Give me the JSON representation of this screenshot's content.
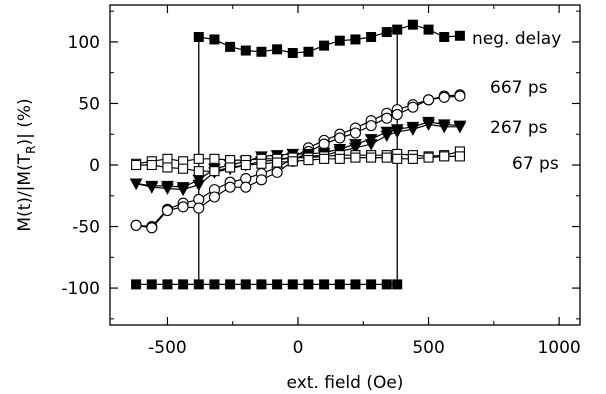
{
  "chart_data": {
    "type": "line",
    "xlabel": "ext. field (Oe)",
    "ylabel_main": "M(t)/|M(T",
    "ylabel_sub": "R",
    "ylabel_tail": ")| (%)",
    "xlim": [
      -720,
      1080
    ],
    "ylim": [
      -130,
      130
    ],
    "xticks": [
      -500,
      0,
      500,
      1000
    ],
    "yticks": [
      -100,
      -50,
      0,
      50,
      100
    ],
    "grid": false,
    "series": [
      {
        "name": "neg. delay",
        "marker": "filled-square",
        "branches": [
          {
            "x": [
              -620,
              -560,
              -500,
              -440,
              -380,
              -320,
              -260,
              -200,
              -140,
              -80,
              -20,
              40,
              100,
              160,
              220,
              280,
              340,
              380
            ],
            "y": [
              -97,
              -97,
              -97,
              -97,
              -97,
              -97,
              -97,
              -97,
              -97,
              -97,
              -97,
              -97,
              -97,
              -97,
              -97,
              -97,
              -97,
              -97
            ]
          },
          {
            "x": [
              -380,
              -320,
              -260,
              -200,
              -140,
              -80,
              -20,
              40,
              100,
              160,
              220,
              280,
              340,
              380,
              440,
              500,
              560,
              620
            ],
            "y": [
              104,
              102,
              96,
              93,
              92,
              94,
              91,
              92,
              97,
              101,
              102,
              104,
              108,
              110,
              114,
              110,
              104,
              105
            ]
          }
        ],
        "switch_x": [
          -380,
          380
        ]
      },
      {
        "name": "667 ps",
        "marker": "open-circle",
        "branches": [
          {
            "x": [
              -620,
              -560,
              -500,
              -440,
              -380,
              -320,
              -260,
              -200,
              -140,
              -80,
              -20,
              40,
              100,
              160,
              220,
              280,
              340,
              380,
              440,
              500,
              560,
              620
            ],
            "y": [
              -49,
              -50,
              -36,
              -31,
              -28,
              -20,
              -14,
              -11,
              -7,
              -2,
              5,
              14,
              20,
              25,
              30,
              36,
              42,
              45,
              49,
              53,
              56,
              57
            ]
          },
          {
            "x": [
              -620,
              -560,
              -500,
              -440,
              -380,
              -320,
              -260,
              -200,
              -140,
              -80,
              -20,
              40,
              100,
              160,
              220,
              280,
              340,
              380,
              440,
              500,
              560,
              620
            ],
            "y": [
              -49,
              -51,
              -37,
              -34,
              -35,
              -26,
              -18,
              -18,
              -12,
              -6,
              3,
              11,
              17,
              22,
              26,
              32,
              38,
              41,
              47,
              53,
              55,
              56
            ]
          }
        ]
      },
      {
        "name": "267 ps",
        "marker": "filled-triangle-down",
        "branches": [
          {
            "x": [
              -620,
              -560,
              -500,
              -440,
              -380,
              -320,
              -260,
              -200,
              -140,
              -80,
              -20,
              40,
              100,
              160,
              220,
              280,
              340,
              380,
              440,
              500,
              560,
              620
            ],
            "y": [
              -15,
              -17,
              -17,
              -18,
              -12,
              -3,
              0,
              3,
              7,
              8,
              9,
              9,
              10,
              13,
              17,
              21,
              27,
              29,
              31,
              35,
              33,
              32
            ]
          },
          {
            "x": [
              -620,
              -560,
              -500,
              -440,
              -380,
              -320,
              -260,
              -200,
              -140,
              -80,
              -20,
              40,
              100,
              160,
              220,
              280,
              340,
              380,
              440,
              500,
              560,
              620
            ],
            "y": [
              -15,
              -18,
              -19,
              -20,
              -16,
              -6,
              -3,
              0,
              3,
              4,
              6,
              7,
              8,
              11,
              14,
              17,
              24,
              27,
              29,
              33,
              31,
              31
            ]
          }
        ]
      },
      {
        "name": "67 ps",
        "marker": "open-square",
        "branches": [
          {
            "x": [
              -620,
              -560,
              -500,
              -440,
              -380,
              -320,
              -260,
              -200,
              -140,
              -80,
              -20,
              40,
              100,
              160,
              220,
              280,
              340,
              380,
              440,
              500,
              560,
              620
            ],
            "y": [
              1,
              3,
              5,
              3,
              5,
              5,
              4,
              4,
              5,
              5,
              6,
              6,
              7,
              8,
              8,
              8,
              8,
              9,
              8,
              7,
              8,
              11
            ]
          },
          {
            "x": [
              -620,
              -560,
              -500,
              -440,
              -380,
              -320,
              -260,
              -200,
              -140,
              -80,
              -20,
              40,
              100,
              160,
              220,
              280,
              340,
              380,
              440,
              500,
              560,
              620
            ],
            "y": [
              0,
              0,
              -2,
              -3,
              -5,
              -5,
              -2,
              0,
              1,
              2,
              3,
              4,
              5,
              5,
              6,
              6,
              6,
              5,
              5,
              6,
              7,
              7
            ]
          }
        ]
      }
    ]
  }
}
